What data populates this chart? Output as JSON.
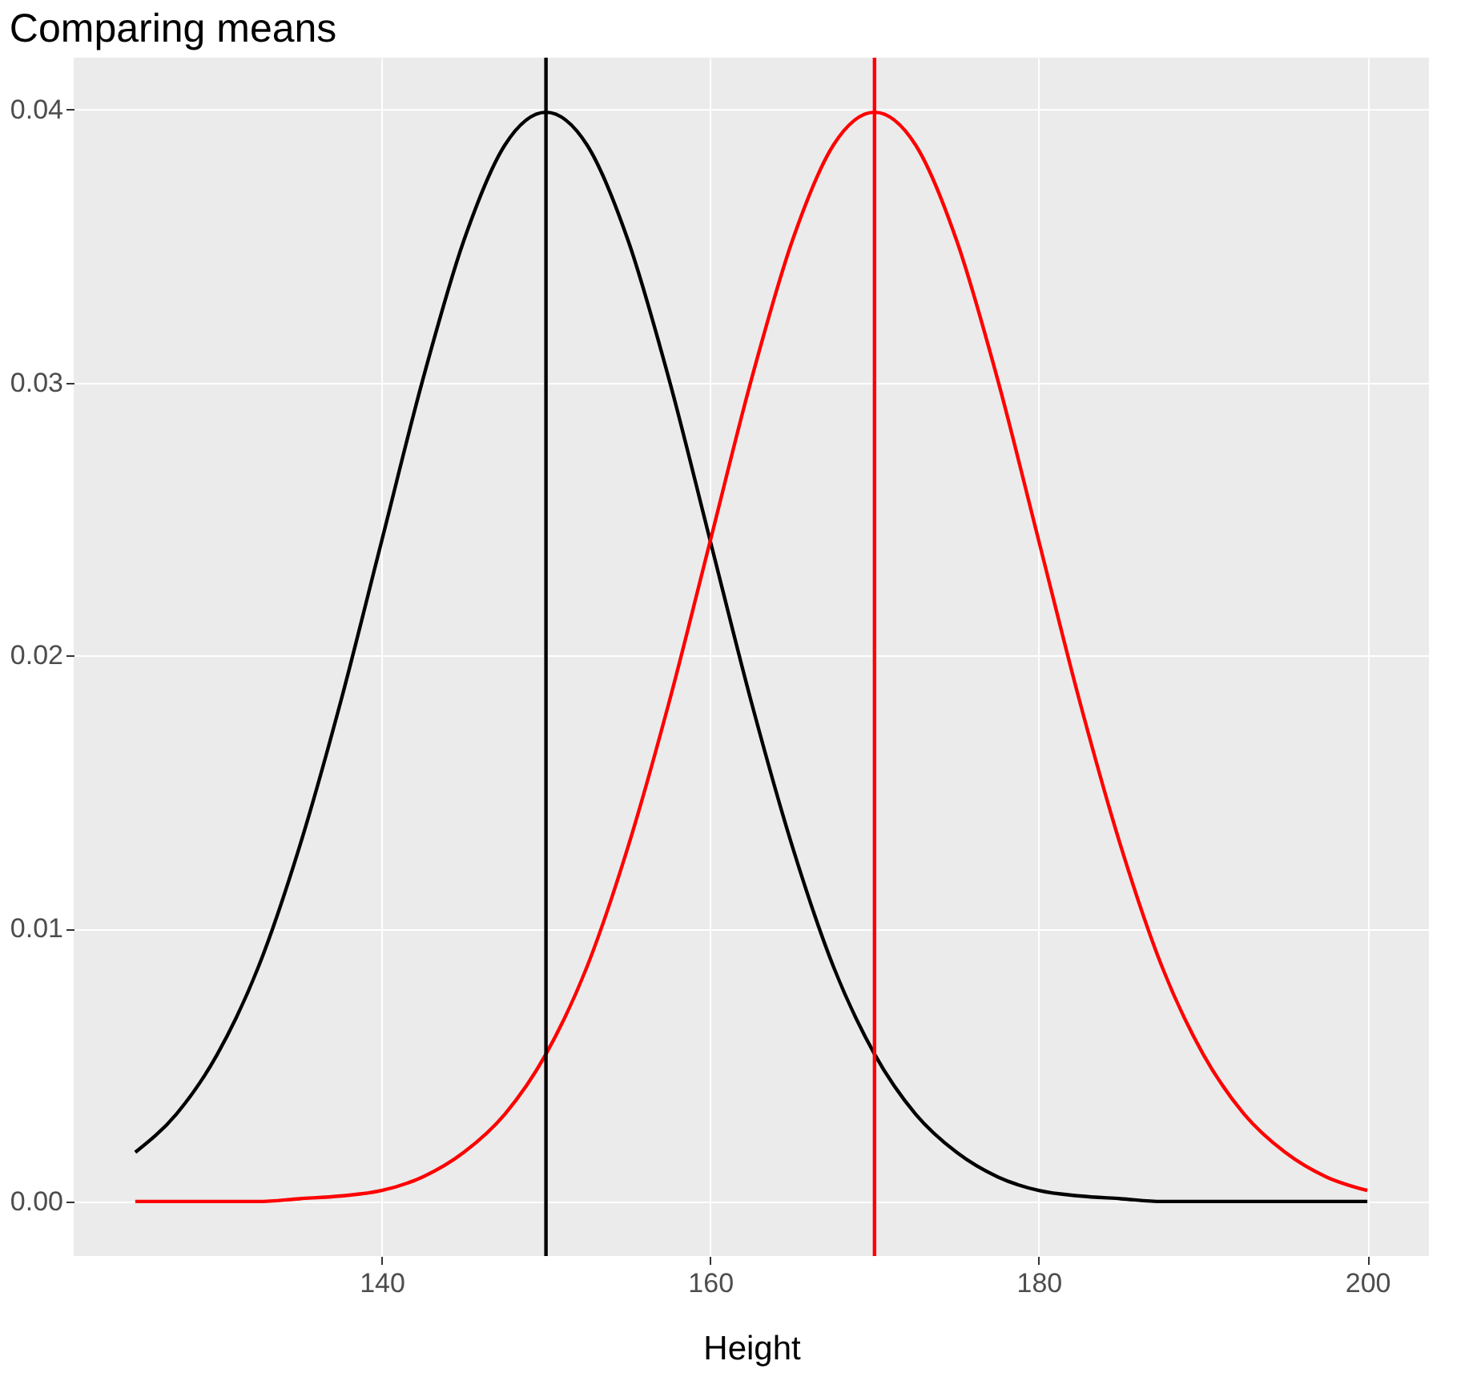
{
  "chart_data": {
    "type": "line",
    "title": "Comparing means",
    "xlabel": "Height",
    "x": [
      125,
      127.5,
      130,
      132.5,
      135,
      137.5,
      140,
      142.5,
      145,
      147.5,
      150,
      152.5,
      155,
      157.5,
      160,
      162.5,
      165,
      167.5,
      170,
      172.5,
      175,
      177.5,
      180,
      182.5,
      185,
      187.5,
      190,
      192.5,
      195,
      197.5,
      200
    ],
    "series": [
      {
        "color": "#000000",
        "values": [
          0.0018,
          0.0032,
          0.0054,
          0.0086,
          0.013,
          0.0183,
          0.0242,
          0.0301,
          0.0352,
          0.0387,
          0.0399,
          0.0387,
          0.0352,
          0.0301,
          0.0242,
          0.0183,
          0.013,
          0.0086,
          0.0054,
          0.0032,
          0.0018,
          0.0009,
          0.0004,
          0.0002,
          0.0001,
          0,
          0,
          0,
          0,
          0,
          0
        ]
      },
      {
        "color": "#ff0000",
        "values": [
          0,
          0,
          0,
          0,
          0.0001,
          0.0002,
          0.0004,
          0.0009,
          0.0018,
          0.0032,
          0.0054,
          0.0086,
          0.013,
          0.0183,
          0.0242,
          0.0301,
          0.0352,
          0.0387,
          0.0399,
          0.0387,
          0.0352,
          0.0301,
          0.0242,
          0.0183,
          0.013,
          0.0086,
          0.0054,
          0.0032,
          0.0018,
          0.0009,
          0.0004
        ]
      }
    ],
    "xlim": [
      121.25,
      203.75
    ],
    "xticks": [
      140,
      160,
      180,
      200
    ],
    "ylim": [
      -0.002,
      0.0419
    ],
    "yticks": [
      {
        "value": 0,
        "label": "0.00"
      },
      {
        "value": 0.01,
        "label": "0.01"
      },
      {
        "value": 0.02,
        "label": "0.02"
      },
      {
        "value": 0.03,
        "label": "0.03"
      },
      {
        "value": 0.04,
        "label": "0.04"
      }
    ],
    "ref_lines": [
      {
        "axis": "x",
        "value": 150,
        "color": "#000000"
      },
      {
        "axis": "x",
        "value": 170,
        "color": "#ff0000"
      }
    ],
    "grid": true
  }
}
